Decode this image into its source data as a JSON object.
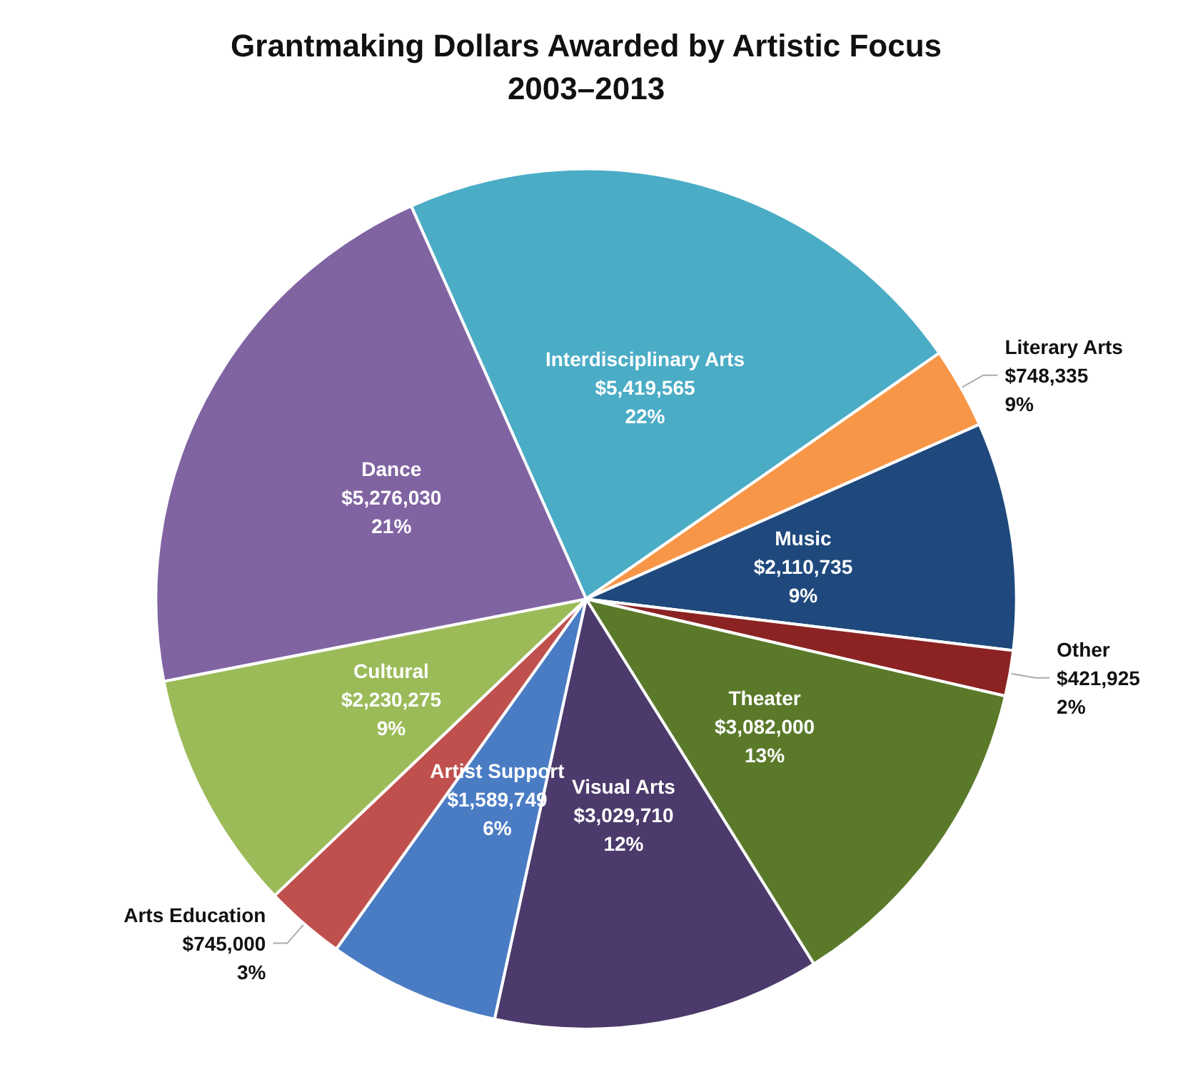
{
  "chart_data": {
    "type": "pie",
    "title": "Grantmaking Dollars Awarded by Artistic Focus\n2003–2013",
    "categories": [
      "Interdisciplinary Arts",
      "Literary Arts",
      "Music",
      "Other",
      "Theater",
      "Visual Arts",
      "Artist Support",
      "Arts Education",
      "Cultural",
      "Dance"
    ],
    "values": [
      5419565,
      748335,
      2110735,
      421925,
      3082000,
      3029710,
      1589749,
      745000,
      2230275,
      5276030
    ],
    "value_labels": [
      "$5,419,565\n22%",
      "$748,335\n9%",
      "$2,110,735\n9%",
      "$421,925\n2%",
      "$3,082,000\n13%",
      "$3,029,710\n12%",
      "$1,589,749\n6%",
      "$745,000\n3%",
      "$2,230,275\n9%",
      "$5,276,030\n21%"
    ],
    "colors": [
      "#4bacc6",
      "#f79646",
      "#1f497d",
      "#8b2323",
      "#5a7a2a",
      "#4b3a6b",
      "#4a7cc4",
      "#c0504d",
      "#9bbb59",
      "#8064a2"
    ],
    "legend": false
  }
}
